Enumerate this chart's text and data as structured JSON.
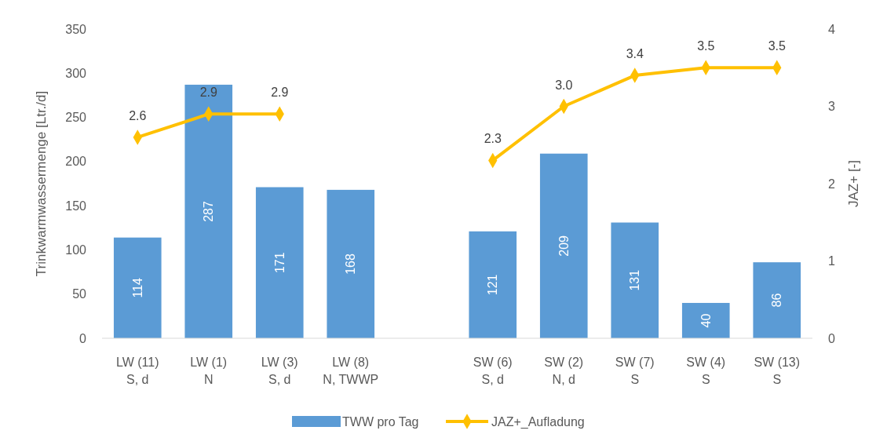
{
  "chart_data": {
    "type": "bar",
    "categories": [
      "LW (11)\nS, d",
      "LW (1)\nN",
      "LW (3)\nS, d",
      "LW (8)\nN, TWWP",
      null,
      "SW (6)\nS, d",
      "SW (2)\nN, d",
      "SW (7)\nS",
      "SW (4)\nS",
      "SW (13)\nS"
    ],
    "series": [
      {
        "name": "TWW pro Tag",
        "color": "#5b9bd5",
        "values": [
          114,
          287,
          171,
          168,
          null,
          121,
          209,
          131,
          40,
          86
        ]
      },
      {
        "name": "JAZ+_Aufladung",
        "type": "line",
        "axis": "y2",
        "color": "#ffc000",
        "marker": "diamond",
        "values": [
          2.6,
          2.9,
          2.9,
          null,
          null,
          2.3,
          3.0,
          3.4,
          3.5,
          3.5
        ],
        "value_labels": [
          "2.6",
          "2.9",
          "2.9",
          null,
          null,
          "2.3",
          "3.0",
          "3.4",
          "3.5",
          "3.5"
        ]
      }
    ],
    "ylabel": "Trinkwarmwassermenge  [Ltr./d]",
    "y2label": "JAZ+ [-]",
    "ylim": [
      0,
      350
    ],
    "yticks": [
      0,
      50,
      100,
      150,
      200,
      250,
      300,
      350
    ],
    "y2lim": [
      0,
      4
    ],
    "y2ticks": [
      0,
      1,
      2,
      3,
      4
    ],
    "data_labels": true,
    "legend": "bottom"
  }
}
